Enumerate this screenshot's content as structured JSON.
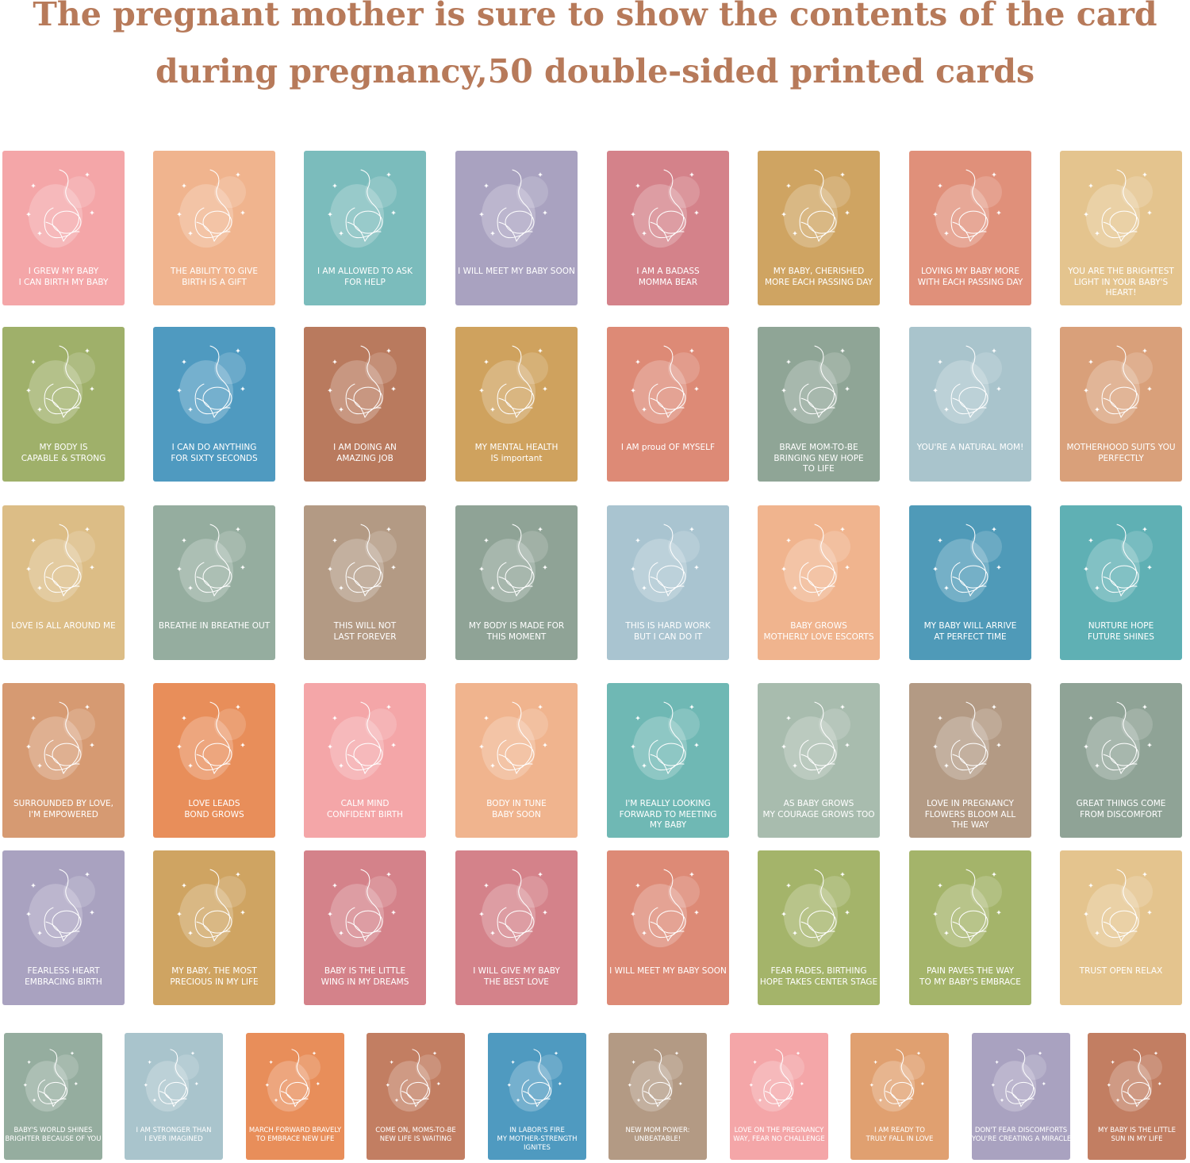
{
  "header": {
    "title_lines": [
      "The pregnant mother is sure to show the contents of the card",
      "during pregnancy,50 double-sided printed cards"
    ]
  },
  "rows": [
    {
      "cards": [
        {
          "lines": [
            "I GREW MY BABY",
            "I CAN BIRTH MY BABY"
          ],
          "color": "#f4a6a8"
        },
        {
          "lines": [
            "THE ABILITY TO GIVE",
            "BIRTH IS A GIFT"
          ],
          "color": "#f0b48e"
        },
        {
          "lines": [
            "I AM ALLOWED TO ASK",
            "FOR HELP"
          ],
          "color": "#7bbcbc"
        },
        {
          "lines": [
            "I WILL MEET MY BABY SOON"
          ],
          "color": "#a9a2c0"
        },
        {
          "lines": [
            "I AM A BADASS",
            "MOMMA BEAR"
          ],
          "color": "#d4828a"
        },
        {
          "lines": [
            "MY BABY, CHERISHED",
            "MORE EACH PASSING DAY"
          ],
          "color": "#cfa462"
        },
        {
          "lines": [
            "LOVING MY BABY MORE",
            "WITH EACH PASSING DAY"
          ],
          "color": "#e0907a"
        },
        {
          "lines": [
            "YOU ARE THE BRIGHTEST",
            "LIGHT IN YOUR BABY'S",
            "HEART!"
          ],
          "color": "#e4c48e"
        }
      ]
    },
    {
      "cards": [
        {
          "lines": [
            "MY BODY IS",
            "CAPABLE & STRONG"
          ],
          "color": "#9fb06a"
        },
        {
          "lines": [
            "I CAN DO ANYTHING",
            "FOR SIXTY SECONDS"
          ],
          "color": "#4f9ac0"
        },
        {
          "lines": [
            "I AM DOING AN",
            "AMAZING JOB"
          ],
          "color": "#b97a5e"
        },
        {
          "lines": [
            "MY MENTAL HEALTH",
            "IS important"
          ],
          "color": "#cfa25e"
        },
        {
          "lines": [
            "I AM proud OF MYSELF"
          ],
          "color": "#dd8a76"
        },
        {
          "lines": [
            "BRAVE MOM-TO-BE",
            "BRINGING NEW HOPE",
            "TO LIFE"
          ],
          "color": "#8fa596"
        },
        {
          "lines": [
            "YOU'RE A NATURAL MOM!"
          ],
          "color": "#a9c4cc"
        },
        {
          "lines": [
            "MOTHERHOOD SUITS YOU",
            "PERFECTLY"
          ],
          "color": "#d9a07a"
        }
      ]
    },
    {
      "cards": [
        {
          "lines": [
            "LOVE IS ALL AROUND ME"
          ],
          "color": "#dcbd86"
        },
        {
          "lines": [
            "BREATHE IN BREATHE OUT"
          ],
          "color": "#95ad9f"
        },
        {
          "lines": [
            "THIS WILL NOT",
            "LAST FOREVER"
          ],
          "color": "#b39a84"
        },
        {
          "lines": [
            "MY BODY IS MADE FOR",
            "THIS MOMENT"
          ],
          "color": "#8fa396"
        },
        {
          "lines": [
            "THIS IS HARD WORK",
            "BUT I CAN DO IT"
          ],
          "color": "#a9c4d0"
        },
        {
          "lines": [
            "BABY GROWS",
            "MOTHERLY LOVE ESCORTS"
          ],
          "color": "#f0b48e"
        },
        {
          "lines": [
            "MY BABY WILL ARRIVE",
            "AT PERFECT TIME"
          ],
          "color": "#4f9ab8"
        },
        {
          "lines": [
            "NURTURE HOPE",
            "FUTURE SHINES"
          ],
          "color": "#5fb0b4"
        }
      ]
    },
    {
      "cards": [
        {
          "lines": [
            "SURROUNDED BY LOVE,",
            "I'M EMPOWERED"
          ],
          "color": "#d69a72"
        },
        {
          "lines": [
            "LOVE LEADS",
            "BOND GROWS"
          ],
          "color": "#e88e5a"
        },
        {
          "lines": [
            "CALM MIND",
            "CONFIDENT BIRTH"
          ],
          "color": "#f4a6a8"
        },
        {
          "lines": [
            "BODY IN TUNE",
            "BABY SOON"
          ],
          "color": "#f0b48e"
        },
        {
          "lines": [
            "I'M REALLY LOOKING",
            "FORWARD TO MEETING",
            "MY BABY"
          ],
          "color": "#6fb8b4"
        },
        {
          "lines": [
            "AS BABY GROWS",
            "MY COURAGE GROWS TOO"
          ],
          "color": "#a8bcae"
        },
        {
          "lines": [
            "LOVE IN PREGNANCY",
            "FLOWERS BLOOM ALL",
            "THE WAY"
          ],
          "color": "#b39a84"
        },
        {
          "lines": [
            "GREAT THINGS COME",
            "FROM DISCOMFORT"
          ],
          "color": "#8fa396"
        }
      ]
    },
    {
      "cards": [
        {
          "lines": [
            "FEARLESS HEART",
            "EMBRACING BIRTH"
          ],
          "color": "#a9a2c0"
        },
        {
          "lines": [
            "MY BABY, THE MOST",
            "PRECIOUS IN MY LIFE"
          ],
          "color": "#cfa462"
        },
        {
          "lines": [
            "BABY IS THE LITTLE",
            "WING IN MY DREAMS"
          ],
          "color": "#d4828a"
        },
        {
          "lines": [
            "I WILL GIVE MY BABY",
            "THE BEST LOVE"
          ],
          "color": "#d4828a"
        },
        {
          "lines": [
            "I WILL MEET MY BABY SOON"
          ],
          "color": "#dd8a76"
        },
        {
          "lines": [
            "FEAR FADES, BIRTHING",
            "HOPE TAKES CENTER STAGE"
          ],
          "color": "#a4b46a"
        },
        {
          "lines": [
            "PAIN PAVES THE WAY",
            "TO MY BABY'S EMBRACE"
          ],
          "color": "#a4b46a"
        },
        {
          "lines": [
            "TRUST OPEN RELAX"
          ],
          "color": "#e4c48e"
        }
      ]
    },
    {
      "cards": [
        {
          "lines": [
            "BABY'S WORLD SHINES",
            "BRIGHTER BECAUSE OF YOU"
          ],
          "color": "#95ad9f"
        },
        {
          "lines": [
            "I AM STRONGER THAN",
            "I EVER IMAGINED"
          ],
          "color": "#a9c4cc"
        },
        {
          "lines": [
            "MARCH FORWARD BRAVELY",
            "TO EMBRACE NEW LIFE"
          ],
          "color": "#e88e5a"
        },
        {
          "lines": [
            "COME ON, MOMS-TO-BE",
            "NEW LIFE IS WAITING"
          ],
          "color": "#c27e62"
        },
        {
          "lines": [
            "IN LABOR'S FIRE",
            "MY MOTHER-STRENGTH",
            "IGNITES"
          ],
          "color": "#4f9ac0"
        },
        {
          "lines": [
            "NEW MOM POWER:",
            "UNBEATABLE!"
          ],
          "color": "#b39a84"
        },
        {
          "lines": [
            "LOVE ON THE PREGNANCY",
            "WAY, FEAR NO CHALLENGE"
          ],
          "color": "#f4a6a8"
        },
        {
          "lines": [
            "I AM READY TO",
            "TRULY FALL IN LOVE"
          ],
          "color": "#e0a070"
        },
        {
          "lines": [
            "DON'T FEAR DISCOMFORTS",
            "YOU'RE CREATING A MIRACLE"
          ],
          "color": "#a9a2c0"
        },
        {
          "lines": [
            "MY BABY IS THE LITTLE",
            "SUN IN MY LIFE"
          ],
          "color": "#c27e62"
        }
      ]
    }
  ]
}
